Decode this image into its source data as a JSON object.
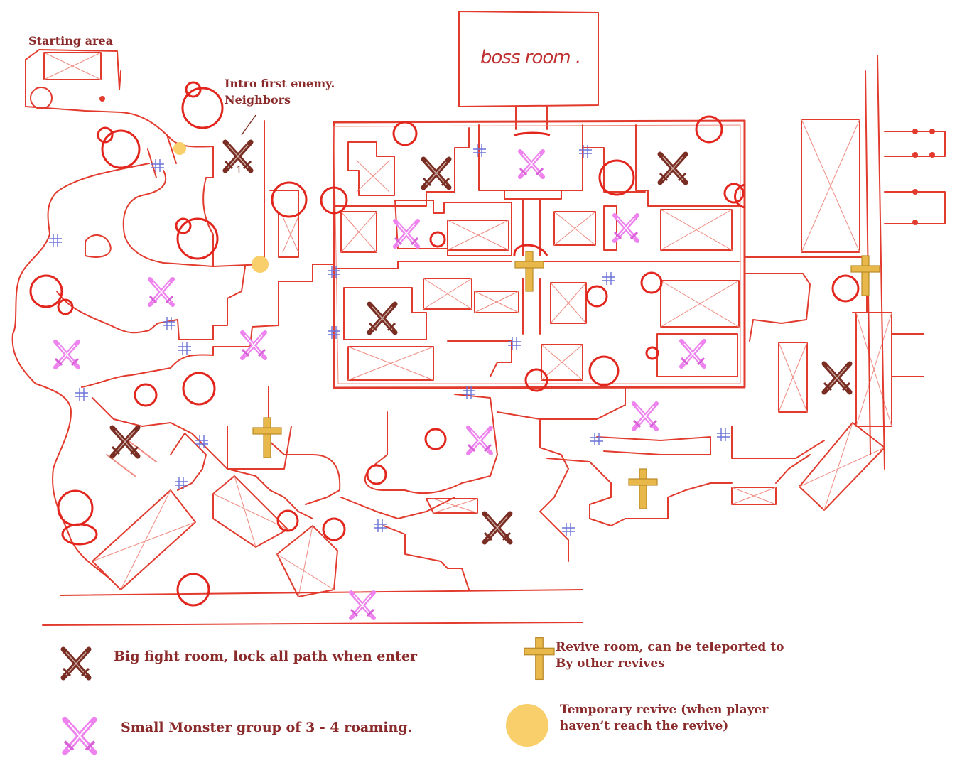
{
  "map": {
    "boss_room": "boss room .",
    "starting_area": "Starting area",
    "intro_enemy": [
      "Intro first enemy.",
      "Neighbors"
    ],
    "intro_enemy_number": "1"
  },
  "legend": {
    "big_fight": "Big fight room, lock all path when enter",
    "small_monster": "Small Monster group of 3 - 4 roaming.",
    "revive_room": [
      "Revive room, can be teleported to",
      "By other revives"
    ],
    "temp_revive": [
      "Temporary revive (when player",
      "haven’t reach the revive)"
    ]
  },
  "colors": {
    "wall": "#e23b2e",
    "wall_light": "#ef8a80",
    "big_fight": "#7a2d22",
    "small_monster": "#ee82ee",
    "revive": "#e0b040",
    "temp_revive": "#f8cf6a",
    "door_arrow": "#6a72d6",
    "text": "#8a2a2a"
  }
}
